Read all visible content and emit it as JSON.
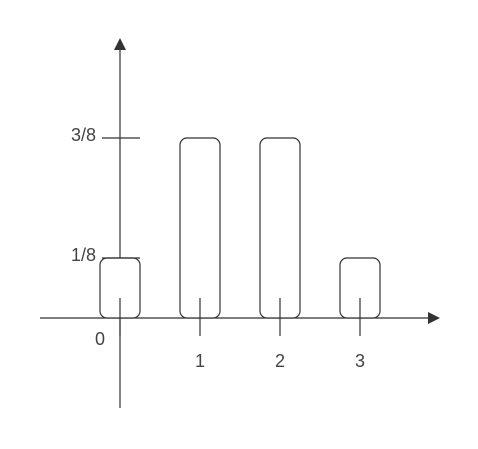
{
  "chart_data": {
    "type": "bar",
    "title": "",
    "xlabel": "",
    "ylabel": "",
    "categories": [
      "0",
      "1",
      "2",
      "3"
    ],
    "values": [
      0.125,
      0.375,
      0.375,
      0.125
    ],
    "x_tick_labels": [
      "0",
      "1",
      "2",
      "3"
    ],
    "y_tick_labels": [
      "1/8",
      "3/8"
    ],
    "y_tick_values": [
      0.125,
      0.375
    ],
    "ylim": [
      -0.1875,
      0.6875
    ],
    "grid": false,
    "colors": {
      "stroke": "#333333",
      "fill": "#ffffff",
      "text": "#444444"
    }
  }
}
